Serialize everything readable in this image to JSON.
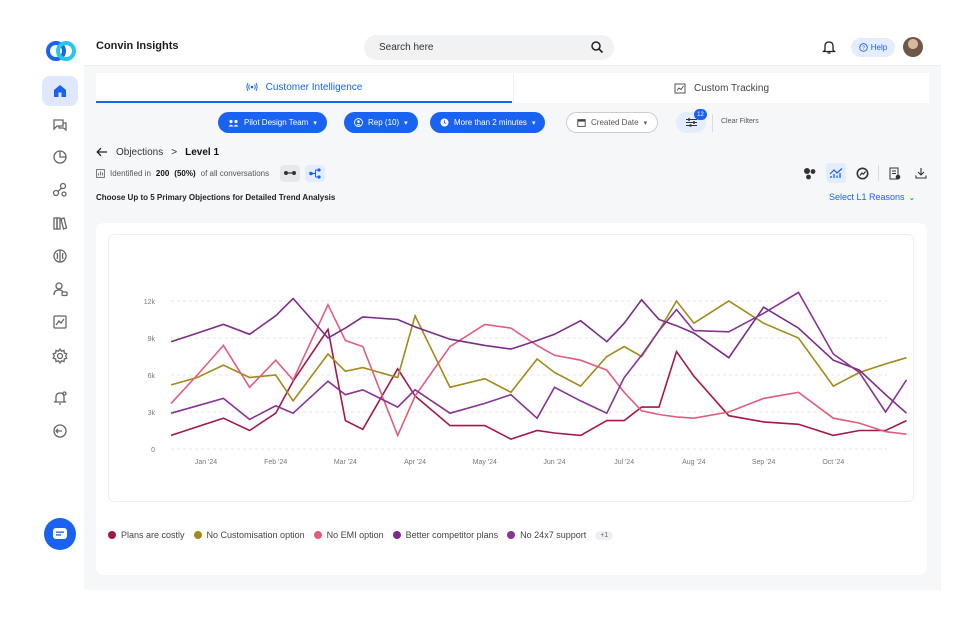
{
  "header": {
    "app_title": "Convin Insights",
    "search_placeholder": "Search here",
    "help_label": "Help"
  },
  "tabs": [
    {
      "label": "Customer Intelligence",
      "active": true
    },
    {
      "label": "Custom Tracking",
      "active": false
    }
  ],
  "filters": {
    "team": "Pilot Design Team",
    "rep": "Rep (10)",
    "duration": "More than 2 minutes",
    "date": "Created Date",
    "settings_badge": "12",
    "clear_label": "Clear Filters"
  },
  "breadcrumb": {
    "parent": "Objections",
    "separator": ">",
    "current": "Level 1"
  },
  "identified": {
    "prefix": "Identified in",
    "count": "200",
    "percent": "(50%)",
    "suffix": "of all conversations"
  },
  "instruction": "Choose Up to 5 Primary Objections for Detailed Trend Analysis",
  "select_l1_label": "Select L1 Reasons",
  "legend_more": "+1",
  "colors": {
    "accent": "#1a62f2",
    "series": [
      "#a3184a",
      "#a08a1c",
      "#de5e7f",
      "#7a2d86",
      "#863592"
    ]
  },
  "chart_data": {
    "type": "line",
    "title": "",
    "xlabel": "",
    "ylabel": "",
    "ylim": [
      0,
      12000
    ],
    "yticks": [
      0,
      3000,
      6000,
      9000,
      12000
    ],
    "ytick_labels": [
      "0",
      "3k",
      "6k",
      "9k",
      "12k"
    ],
    "x_tick_labels": [
      "Jan '24",
      "Feb '24",
      "Mar '24",
      "Apr '24",
      "May '24",
      "Jun '24",
      "Jul '24",
      "Aug '24",
      "Sep '24",
      "Oct '24"
    ],
    "grid": true,
    "legend_position": "bottom-left",
    "x_range": [
      -0.5,
      10.05
    ],
    "x": [
      -0.5,
      -0.125,
      0.25,
      0.625,
      1.0,
      1.25,
      1.75,
      2.0,
      2.25,
      2.75,
      3.0,
      3.5,
      4.0,
      4.375,
      4.75,
      5.0,
      5.375,
      5.75,
      6.0,
      6.25,
      6.5,
      6.75,
      7.0,
      7.5,
      8.0,
      8.5,
      9.0,
      9.375,
      9.75,
      10.05
    ],
    "series": [
      {
        "name": "Plans are costly",
        "values": [
          1100,
          1800,
          2500,
          1500,
          2900,
          5500,
          9700,
          2300,
          1600,
          6500,
          4300,
          1900,
          1900,
          800,
          1500,
          1300,
          1100,
          2300,
          2300,
          3400,
          3400,
          7900,
          5900,
          2700,
          2200,
          2000,
          1100,
          1500,
          1500,
          2300
        ]
      },
      {
        "name": "No Customisation option",
        "values": [
          5200,
          5800,
          6800,
          5800,
          6000,
          3900,
          7700,
          6300,
          6600,
          5800,
          10800,
          5000,
          5700,
          4600,
          7300,
          6200,
          5100,
          7500,
          8300,
          7500,
          9600,
          12000,
          10200,
          12000,
          10200,
          9000,
          5100,
          6200,
          6900,
          7400
        ]
      },
      {
        "name": "No EMI option",
        "values": [
          3700,
          6000,
          8400,
          5000,
          7200,
          5600,
          11700,
          8800,
          8300,
          1100,
          4300,
          8300,
          10100,
          9800,
          8400,
          7600,
          7200,
          6400,
          4600,
          3100,
          2800,
          2600,
          2500,
          3000,
          4100,
          4600,
          2500,
          2100,
          1400,
          1200
        ]
      },
      {
        "name": "Better competitor plans",
        "values": [
          8700,
          9400,
          10100,
          9300,
          10800,
          12200,
          9000,
          9800,
          10700,
          10500,
          9900,
          8900,
          8400,
          8100,
          8800,
          9300,
          10400,
          8700,
          10200,
          12100,
          10500,
          10000,
          9400,
          7400,
          11500,
          9800,
          7200,
          6400,
          4400,
          2900
        ]
      },
      {
        "name": "No 24x7 support",
        "values": [
          2900,
          3500,
          4100,
          2400,
          3500,
          2900,
          5500,
          4400,
          4800,
          3400,
          4800,
          2900,
          3700,
          4400,
          2500,
          5000,
          3900,
          2900,
          5800,
          7600,
          9600,
          11300,
          9600,
          9500,
          11000,
          12700,
          7700,
          6200,
          3000,
          5600
        ]
      }
    ]
  }
}
